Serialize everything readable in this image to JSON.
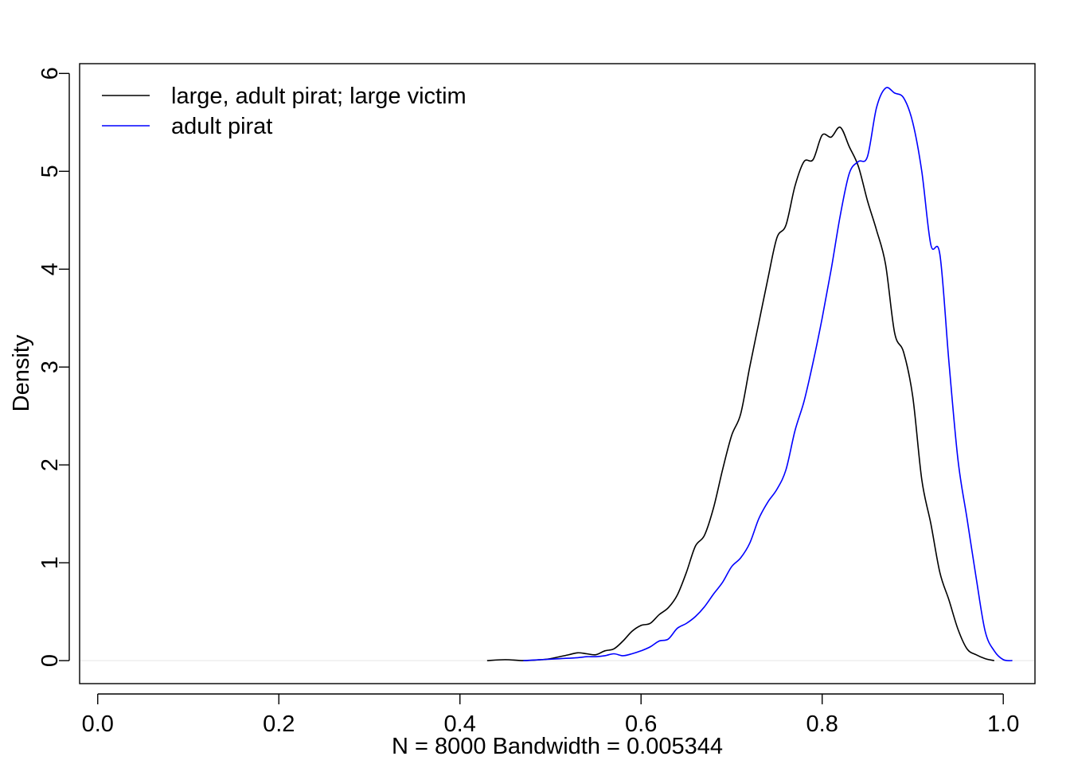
{
  "chart_data": {
    "type": "line",
    "title": "",
    "xlabel": "N = 8000   Bandwidth = 0.005344",
    "ylabel": "Density",
    "xlim": [
      -0.02,
      1.035
    ],
    "ylim": [
      -0.235,
      6.1
    ],
    "xticks": [
      0.0,
      0.2,
      0.4,
      0.6,
      0.8,
      1.0
    ],
    "xtick_labels": [
      "0.0",
      "0.2",
      "0.4",
      "0.6",
      "0.8",
      "1.0"
    ],
    "yticks": [
      0,
      1,
      2,
      3,
      4,
      5,
      6
    ],
    "ytick_labels": [
      "0",
      "1",
      "2",
      "3",
      "4",
      "5",
      "6"
    ],
    "grid": false,
    "legend_position": "top-left",
    "baseline_y": 0,
    "series": [
      {
        "name": "large, adult pirat; large victim",
        "color": "#000000",
        "points": [
          [
            0.43,
            0.0
          ],
          [
            0.45,
            0.01
          ],
          [
            0.47,
            0.0
          ],
          [
            0.49,
            0.01
          ],
          [
            0.5,
            0.02
          ],
          [
            0.52,
            0.06
          ],
          [
            0.53,
            0.08
          ],
          [
            0.54,
            0.07
          ],
          [
            0.55,
            0.06
          ],
          [
            0.56,
            0.1
          ],
          [
            0.57,
            0.12
          ],
          [
            0.58,
            0.2
          ],
          [
            0.59,
            0.3
          ],
          [
            0.6,
            0.36
          ],
          [
            0.61,
            0.38
          ],
          [
            0.62,
            0.47
          ],
          [
            0.63,
            0.54
          ],
          [
            0.64,
            0.67
          ],
          [
            0.65,
            0.9
          ],
          [
            0.66,
            1.17
          ],
          [
            0.67,
            1.28
          ],
          [
            0.68,
            1.56
          ],
          [
            0.69,
            1.95
          ],
          [
            0.7,
            2.3
          ],
          [
            0.71,
            2.52
          ],
          [
            0.72,
            3.0
          ],
          [
            0.73,
            3.45
          ],
          [
            0.74,
            3.9
          ],
          [
            0.75,
            4.32
          ],
          [
            0.76,
            4.45
          ],
          [
            0.77,
            4.85
          ],
          [
            0.78,
            5.1
          ],
          [
            0.79,
            5.12
          ],
          [
            0.8,
            5.37
          ],
          [
            0.81,
            5.35
          ],
          [
            0.82,
            5.45
          ],
          [
            0.83,
            5.25
          ],
          [
            0.84,
            5.05
          ],
          [
            0.85,
            4.7
          ],
          [
            0.86,
            4.4
          ],
          [
            0.87,
            4.05
          ],
          [
            0.88,
            3.35
          ],
          [
            0.89,
            3.15
          ],
          [
            0.9,
            2.7
          ],
          [
            0.91,
            1.85
          ],
          [
            0.92,
            1.4
          ],
          [
            0.93,
            0.9
          ],
          [
            0.94,
            0.62
          ],
          [
            0.95,
            0.32
          ],
          [
            0.96,
            0.12
          ],
          [
            0.97,
            0.06
          ],
          [
            0.98,
            0.02
          ],
          [
            0.99,
            0.0
          ]
        ]
      },
      {
        "name": "adult pirat",
        "color": "#0000ff",
        "points": [
          [
            0.47,
            0.0
          ],
          [
            0.49,
            0.01
          ],
          [
            0.51,
            0.02
          ],
          [
            0.53,
            0.03
          ],
          [
            0.54,
            0.04
          ],
          [
            0.55,
            0.04
          ],
          [
            0.56,
            0.05
          ],
          [
            0.57,
            0.07
          ],
          [
            0.58,
            0.05
          ],
          [
            0.59,
            0.07
          ],
          [
            0.6,
            0.1
          ],
          [
            0.61,
            0.14
          ],
          [
            0.62,
            0.2
          ],
          [
            0.63,
            0.22
          ],
          [
            0.64,
            0.33
          ],
          [
            0.65,
            0.38
          ],
          [
            0.66,
            0.45
          ],
          [
            0.67,
            0.55
          ],
          [
            0.68,
            0.68
          ],
          [
            0.69,
            0.8
          ],
          [
            0.7,
            0.96
          ],
          [
            0.71,
            1.05
          ],
          [
            0.72,
            1.2
          ],
          [
            0.73,
            1.45
          ],
          [
            0.74,
            1.62
          ],
          [
            0.75,
            1.75
          ],
          [
            0.76,
            1.95
          ],
          [
            0.77,
            2.35
          ],
          [
            0.78,
            2.65
          ],
          [
            0.79,
            3.05
          ],
          [
            0.8,
            3.5
          ],
          [
            0.81,
            4.0
          ],
          [
            0.82,
            4.55
          ],
          [
            0.83,
            4.98
          ],
          [
            0.84,
            5.1
          ],
          [
            0.85,
            5.15
          ],
          [
            0.86,
            5.65
          ],
          [
            0.87,
            5.85
          ],
          [
            0.88,
            5.8
          ],
          [
            0.89,
            5.75
          ],
          [
            0.9,
            5.5
          ],
          [
            0.91,
            5.0
          ],
          [
            0.92,
            4.25
          ],
          [
            0.93,
            4.15
          ],
          [
            0.94,
            3.05
          ],
          [
            0.95,
            2.05
          ],
          [
            0.96,
            1.45
          ],
          [
            0.97,
            0.85
          ],
          [
            0.98,
            0.3
          ],
          [
            0.99,
            0.1
          ],
          [
            1.0,
            0.01
          ],
          [
            1.01,
            0.0
          ]
        ]
      }
    ]
  }
}
